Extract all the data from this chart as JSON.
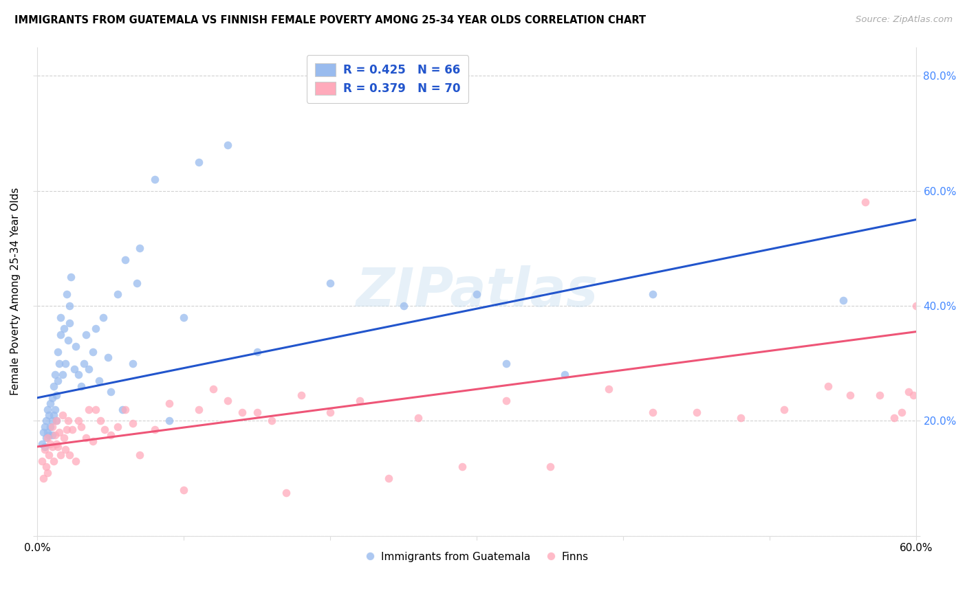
{
  "title": "IMMIGRANTS FROM GUATEMALA VS FINNISH FEMALE POVERTY AMONG 25-34 YEAR OLDS CORRELATION CHART",
  "source": "Source: ZipAtlas.com",
  "ylabel": "Female Poverty Among 25-34 Year Olds",
  "xlim": [
    0.0,
    0.6
  ],
  "ylim": [
    0.0,
    0.85
  ],
  "blue_line_start_y": 0.24,
  "blue_line_end_y": 0.55,
  "pink_line_start_y": 0.155,
  "pink_line_end_y": 0.355,
  "blue_color": "#99bbee",
  "pink_color": "#ffaabb",
  "blue_line_color": "#2255cc",
  "pink_line_color": "#ee5577",
  "legend_label_blue": "R = 0.425   N = 66",
  "legend_label_pink": "R = 0.379   N = 70",
  "legend_bottom_blue": "Immigrants from Guatemala",
  "legend_bottom_pink": "Finns",
  "watermark": "ZIPatlas",
  "background_color": "#ffffff",
  "grid_color": "#cccccc",
  "right_tick_color": "#4488ff",
  "blue_scatter_x": [
    0.003,
    0.004,
    0.005,
    0.005,
    0.006,
    0.006,
    0.007,
    0.007,
    0.008,
    0.008,
    0.009,
    0.009,
    0.01,
    0.01,
    0.01,
    0.011,
    0.011,
    0.012,
    0.012,
    0.013,
    0.013,
    0.014,
    0.014,
    0.015,
    0.016,
    0.016,
    0.017,
    0.018,
    0.019,
    0.02,
    0.021,
    0.022,
    0.022,
    0.023,
    0.025,
    0.026,
    0.028,
    0.03,
    0.032,
    0.033,
    0.035,
    0.038,
    0.04,
    0.042,
    0.045,
    0.048,
    0.05,
    0.055,
    0.058,
    0.06,
    0.065,
    0.068,
    0.07,
    0.08,
    0.09,
    0.1,
    0.11,
    0.13,
    0.15,
    0.2,
    0.25,
    0.3,
    0.32,
    0.36,
    0.42,
    0.55
  ],
  "blue_scatter_y": [
    0.16,
    0.18,
    0.155,
    0.19,
    0.17,
    0.2,
    0.18,
    0.22,
    0.175,
    0.21,
    0.19,
    0.23,
    0.2,
    0.24,
    0.175,
    0.21,
    0.26,
    0.22,
    0.28,
    0.245,
    0.2,
    0.32,
    0.27,
    0.3,
    0.35,
    0.38,
    0.28,
    0.36,
    0.3,
    0.42,
    0.34,
    0.37,
    0.4,
    0.45,
    0.29,
    0.33,
    0.28,
    0.26,
    0.3,
    0.35,
    0.29,
    0.32,
    0.36,
    0.27,
    0.38,
    0.31,
    0.25,
    0.42,
    0.22,
    0.48,
    0.3,
    0.44,
    0.5,
    0.62,
    0.2,
    0.38,
    0.65,
    0.68,
    0.32,
    0.44,
    0.4,
    0.42,
    0.3,
    0.28,
    0.42,
    0.41
  ],
  "pink_scatter_x": [
    0.003,
    0.004,
    0.005,
    0.006,
    0.007,
    0.007,
    0.008,
    0.009,
    0.01,
    0.01,
    0.011,
    0.012,
    0.013,
    0.013,
    0.014,
    0.015,
    0.016,
    0.017,
    0.018,
    0.019,
    0.02,
    0.021,
    0.022,
    0.024,
    0.026,
    0.028,
    0.03,
    0.033,
    0.035,
    0.038,
    0.04,
    0.043,
    0.046,
    0.05,
    0.055,
    0.06,
    0.065,
    0.07,
    0.08,
    0.09,
    0.1,
    0.11,
    0.12,
    0.13,
    0.14,
    0.15,
    0.16,
    0.17,
    0.18,
    0.2,
    0.22,
    0.24,
    0.26,
    0.29,
    0.32,
    0.35,
    0.39,
    0.42,
    0.45,
    0.48,
    0.51,
    0.54,
    0.555,
    0.565,
    0.575,
    0.585,
    0.59,
    0.595,
    0.598,
    0.6
  ],
  "pink_scatter_y": [
    0.13,
    0.1,
    0.15,
    0.12,
    0.17,
    0.11,
    0.14,
    0.16,
    0.155,
    0.19,
    0.13,
    0.175,
    0.16,
    0.2,
    0.155,
    0.18,
    0.14,
    0.21,
    0.17,
    0.15,
    0.185,
    0.2,
    0.14,
    0.185,
    0.13,
    0.2,
    0.19,
    0.17,
    0.22,
    0.165,
    0.22,
    0.2,
    0.185,
    0.175,
    0.19,
    0.22,
    0.195,
    0.14,
    0.185,
    0.23,
    0.08,
    0.22,
    0.255,
    0.235,
    0.215,
    0.215,
    0.2,
    0.075,
    0.245,
    0.215,
    0.235,
    0.1,
    0.205,
    0.12,
    0.235,
    0.12,
    0.255,
    0.215,
    0.215,
    0.205,
    0.22,
    0.26,
    0.245,
    0.58,
    0.245,
    0.205,
    0.215,
    0.25,
    0.245,
    0.4
  ]
}
